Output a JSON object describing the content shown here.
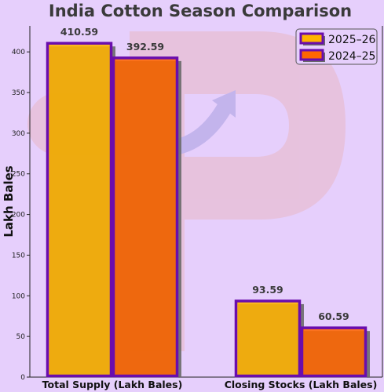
{
  "chart_data": {
    "type": "bar",
    "title": "India Cotton Season Comparison",
    "xlabel": "",
    "ylabel": "Lakh Bales",
    "categories": [
      "Total Supply (Lakh Bales)",
      "Closing Stocks (Lakh Bales)"
    ],
    "series": [
      {
        "name": "2025–26",
        "values": [
          410.59,
          93.59
        ],
        "color": "#ffb300"
      },
      {
        "name": "2024–25",
        "values": [
          392.59,
          60.59
        ],
        "color": "#ff6600"
      }
    ],
    "ylim": [
      0,
      432
    ],
    "yticks": [
      0,
      50,
      100,
      150,
      200,
      250,
      300,
      350,
      400
    ],
    "grid": false,
    "legend_position": "top-right",
    "bar_edge_color": "#6a0dad",
    "shadow_color": "#6a6a6a",
    "background_color": "#e6cffc"
  }
}
